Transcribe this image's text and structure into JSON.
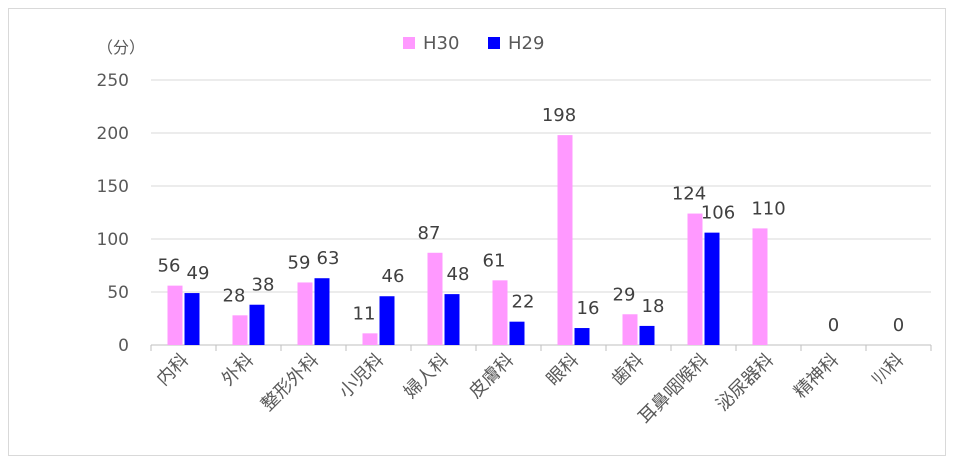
{
  "chart_data": {
    "type": "bar",
    "unit_label": "（分）",
    "ylim": [
      0,
      250
    ],
    "yticks": [
      0,
      50,
      100,
      150,
      200,
      250
    ],
    "grid": true,
    "legend_position": "top-center",
    "categories": [
      "内科",
      "外科",
      "整形外科",
      "小児科",
      "婦人科",
      "皮膚科",
      "眼科",
      "歯科",
      "耳鼻咽喉科",
      "泌尿器科",
      "精神科",
      "ﾘﾊ科"
    ],
    "series": [
      {
        "name": "H30",
        "color": "#ff99ff",
        "values": [
          56,
          28,
          59,
          11,
          87,
          61,
          198,
          29,
          124,
          110,
          0,
          0
        ],
        "labels": [
          "56",
          "28",
          "59",
          "11",
          "87",
          "61",
          "198",
          "29",
          "124",
          "110",
          "0",
          "0"
        ]
      },
      {
        "name": "H29",
        "color": "#0000ff",
        "values": [
          49,
          38,
          63,
          46,
          48,
          22,
          16,
          18,
          106,
          null,
          null,
          null
        ],
        "labels": [
          "49",
          "38",
          "63",
          "46",
          "48",
          "22",
          "16",
          "18",
          "106",
          "",
          "",
          ""
        ]
      }
    ]
  }
}
